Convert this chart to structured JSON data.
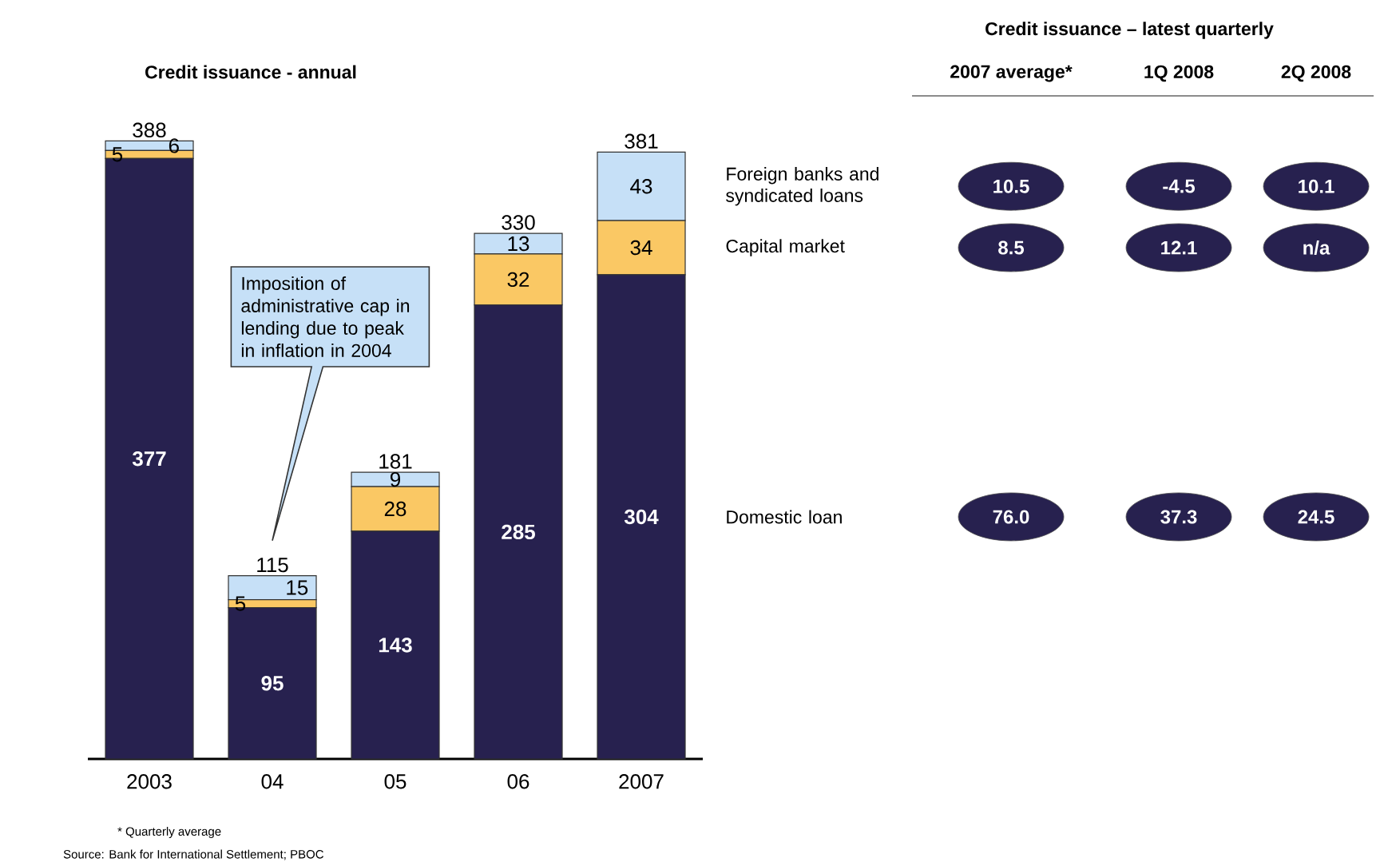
{
  "chart_data": [
    {
      "type": "bar",
      "title": "Credit issuance - annual",
      "categories": [
        "2003",
        "04",
        "05",
        "06",
        "2007"
      ],
      "stacked": true,
      "data_labels": true,
      "series": [
        {
          "name": "Domestic loan",
          "color": "#27214f",
          "values": [
            377,
            95,
            143,
            285,
            304
          ]
        },
        {
          "name": "Capital market",
          "color": "#fac864",
          "values": [
            5,
            5,
            28,
            32,
            34
          ]
        },
        {
          "name": "Foreign banks and syndicated loans",
          "color": "#c6e0f7",
          "values": [
            6,
            15,
            9,
            13,
            43
          ]
        }
      ],
      "totals": [
        "388",
        "115",
        "181",
        "330",
        "381"
      ],
      "annotations": [
        "Imposition of administrative cap in lending due to peak in inflation in 2004",
        "* Quarterly average",
        "Source: Bank for International Settlement; PBOC"
      ]
    },
    {
      "type": "other",
      "title": "Credit issuance – latest quarterly",
      "categories": [
        "2007 average*",
        "1Q 2008",
        "2Q 2008"
      ],
      "color": "#27214f",
      "cell_labels": [
        [
          "10.5",
          "-4.5",
          "10.1"
        ],
        [
          "8.5",
          "12.1",
          "n/a"
        ],
        [
          "76.0",
          "37.3",
          "24.5"
        ]
      ]
    }
  ]
}
